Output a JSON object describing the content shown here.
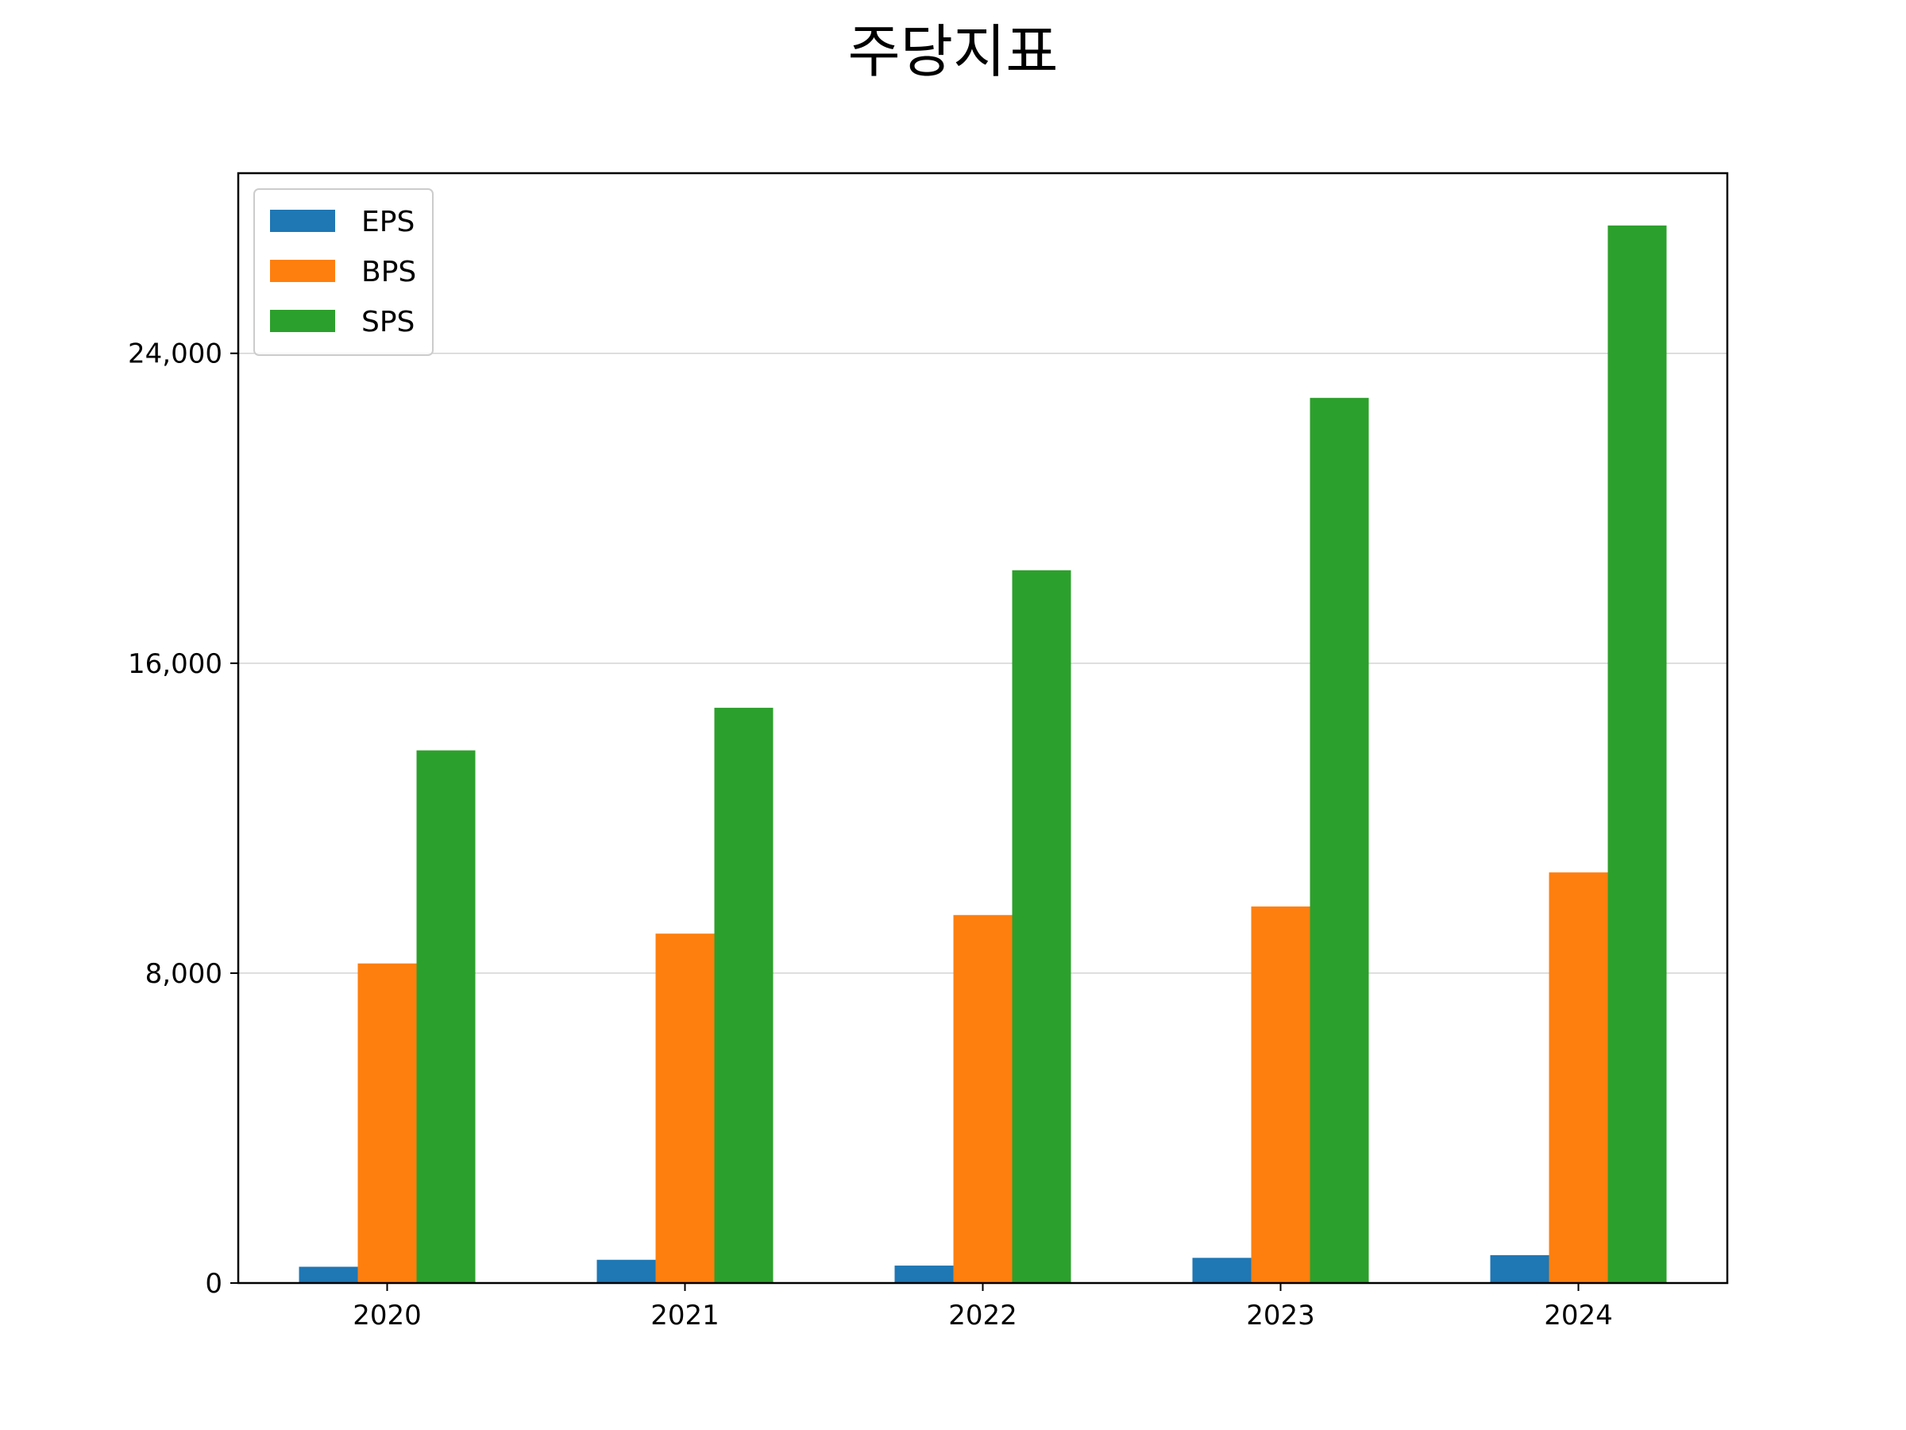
{
  "chart_data": {
    "type": "bar",
    "title": "주당지표",
    "xlabel": "",
    "ylabel": "",
    "categories": [
      "2020",
      "2021",
      "2022",
      "2023",
      "2024"
    ],
    "series": [
      {
        "name": "EPS",
        "color": "#1f77b4",
        "values": [
          420,
          600,
          450,
          650,
          720
        ]
      },
      {
        "name": "BPS",
        "color": "#ff7f0e",
        "values": [
          8250,
          9020,
          9500,
          9720,
          10600
        ]
      },
      {
        "name": "SPS",
        "color": "#2ca02c",
        "values": [
          13750,
          14850,
          18400,
          22850,
          27300
        ]
      }
    ],
    "ylim": [
      0,
      28650
    ],
    "yticks": [
      0,
      8000,
      16000,
      24000
    ],
    "ytick_labels": [
      "0",
      "8,000",
      "16,000",
      "24,000"
    ],
    "grid": "horizontal",
    "legend_position": "top-left"
  }
}
